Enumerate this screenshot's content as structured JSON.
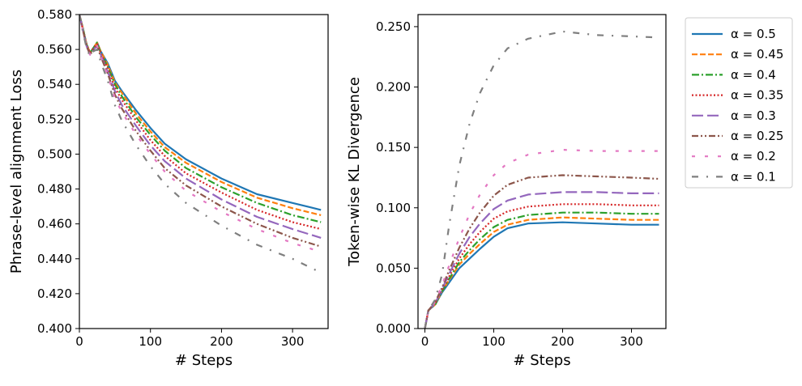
{
  "chart_data": [
    {
      "type": "line",
      "title": "",
      "xlabel": "# Steps",
      "ylabel": "Phrase-level alignment Loss",
      "xlim": [
        0,
        350
      ],
      "ylim": [
        0.4,
        0.58
      ],
      "grid": false,
      "xticks": [
        "0",
        "100",
        "200",
        "300"
      ],
      "yticks": [
        "0.400",
        "0.420",
        "0.440",
        "0.460",
        "0.480",
        "0.500",
        "0.520",
        "0.540",
        "0.560",
        "0.580"
      ],
      "x": [
        0,
        5,
        10,
        15,
        20,
        25,
        30,
        40,
        50,
        60,
        80,
        100,
        120,
        150,
        200,
        250,
        300,
        340
      ],
      "series": [
        {
          "name": "α = 0.5",
          "values": [
            0.58,
            0.572,
            0.563,
            0.558,
            0.561,
            0.564,
            0.559,
            0.552,
            0.542,
            0.536,
            0.525,
            0.515,
            0.506,
            0.497,
            0.486,
            0.477,
            0.472,
            0.468
          ]
        },
        {
          "name": "α = 0.45",
          "values": [
            0.58,
            0.572,
            0.563,
            0.558,
            0.561,
            0.564,
            0.559,
            0.551,
            0.541,
            0.535,
            0.523,
            0.513,
            0.504,
            0.495,
            0.484,
            0.475,
            0.469,
            0.465
          ]
        },
        {
          "name": "α = 0.4",
          "values": [
            0.58,
            0.572,
            0.563,
            0.558,
            0.561,
            0.564,
            0.558,
            0.55,
            0.54,
            0.533,
            0.521,
            0.511,
            0.502,
            0.492,
            0.481,
            0.472,
            0.465,
            0.461
          ]
        },
        {
          "name": "α = 0.35",
          "values": [
            0.58,
            0.571,
            0.563,
            0.558,
            0.561,
            0.563,
            0.558,
            0.549,
            0.538,
            0.531,
            0.519,
            0.508,
            0.499,
            0.489,
            0.478,
            0.468,
            0.461,
            0.457
          ]
        },
        {
          "name": "α = 0.3",
          "values": [
            0.58,
            0.571,
            0.562,
            0.557,
            0.56,
            0.562,
            0.557,
            0.547,
            0.536,
            0.528,
            0.516,
            0.505,
            0.496,
            0.486,
            0.474,
            0.464,
            0.457,
            0.452
          ]
        },
        {
          "name": "α = 0.25",
          "values": [
            0.58,
            0.571,
            0.562,
            0.557,
            0.56,
            0.562,
            0.556,
            0.546,
            0.534,
            0.526,
            0.513,
            0.502,
            0.492,
            0.482,
            0.47,
            0.46,
            0.452,
            0.447
          ]
        },
        {
          "name": "α = 0.2",
          "values": [
            0.58,
            0.571,
            0.562,
            0.557,
            0.56,
            0.562,
            0.556,
            0.545,
            0.532,
            0.524,
            0.511,
            0.5,
            0.49,
            0.479,
            0.467,
            0.457,
            0.449,
            0.444
          ]
        },
        {
          "name": "α = 0.1",
          "values": [
            0.58,
            0.57,
            0.561,
            0.556,
            0.559,
            0.56,
            0.553,
            0.542,
            0.528,
            0.519,
            0.505,
            0.493,
            0.483,
            0.472,
            0.459,
            0.448,
            0.44,
            0.432
          ]
        }
      ]
    },
    {
      "type": "line",
      "title": "",
      "xlabel": "# Steps",
      "ylabel": "Token-wise KL Divergence",
      "xlim": [
        -10,
        350
      ],
      "ylim": [
        0,
        0.26
      ],
      "grid": false,
      "xticks": [
        "0",
        "100",
        "200",
        "300"
      ],
      "yticks": [
        "0.000",
        "0.050",
        "0.100",
        "0.150",
        "0.200",
        "0.250"
      ],
      "x": [
        0,
        5,
        15,
        25,
        35,
        50,
        65,
        80,
        100,
        120,
        150,
        200,
        250,
        300,
        340
      ],
      "series": [
        {
          "name": "α = 0.5",
          "values": [
            0.0,
            0.015,
            0.02,
            0.03,
            0.038,
            0.05,
            0.058,
            0.066,
            0.076,
            0.083,
            0.087,
            0.088,
            0.087,
            0.086,
            0.086
          ]
        },
        {
          "name": "α = 0.45",
          "values": [
            0.0,
            0.015,
            0.02,
            0.031,
            0.04,
            0.053,
            0.062,
            0.07,
            0.08,
            0.086,
            0.09,
            0.092,
            0.091,
            0.09,
            0.09
          ]
        },
        {
          "name": "α = 0.4",
          "values": [
            0.0,
            0.015,
            0.02,
            0.031,
            0.041,
            0.055,
            0.065,
            0.074,
            0.084,
            0.09,
            0.094,
            0.096,
            0.096,
            0.095,
            0.095
          ]
        },
        {
          "name": "α = 0.35",
          "values": [
            0.0,
            0.015,
            0.021,
            0.032,
            0.043,
            0.058,
            0.07,
            0.08,
            0.091,
            0.097,
            0.101,
            0.103,
            0.103,
            0.102,
            0.102
          ]
        },
        {
          "name": "α = 0.3",
          "values": [
            0.0,
            0.015,
            0.021,
            0.033,
            0.045,
            0.062,
            0.076,
            0.087,
            0.099,
            0.106,
            0.111,
            0.113,
            0.113,
            0.112,
            0.112
          ]
        },
        {
          "name": "α = 0.25",
          "values": [
            0.0,
            0.015,
            0.022,
            0.034,
            0.048,
            0.067,
            0.083,
            0.096,
            0.11,
            0.119,
            0.125,
            0.127,
            0.126,
            0.125,
            0.124
          ]
        },
        {
          "name": "α = 0.2",
          "values": [
            0.0,
            0.015,
            0.022,
            0.036,
            0.052,
            0.075,
            0.095,
            0.111,
            0.127,
            0.137,
            0.144,
            0.148,
            0.147,
            0.147,
            0.147
          ]
        },
        {
          "name": "α = 0.1",
          "values": [
            0.0,
            0.015,
            0.024,
            0.045,
            0.085,
            0.135,
            0.17,
            0.195,
            0.218,
            0.232,
            0.24,
            0.246,
            0.243,
            0.242,
            0.241
          ]
        }
      ]
    }
  ],
  "legend": {
    "placement": "outside-right",
    "entries": [
      {
        "label": "α = 0.5",
        "color": "#1f77b4",
        "style": "solid"
      },
      {
        "label": "α = 0.45",
        "color": "#ff7f0e",
        "style": "dashed"
      },
      {
        "label": "α = 0.4",
        "color": "#2ca02c",
        "style": "dashdot"
      },
      {
        "label": "α = 0.35",
        "color": "#d62728",
        "style": "dotted"
      },
      {
        "label": "α = 0.3",
        "color": "#9467bd",
        "style": "long-dash"
      },
      {
        "label": "α = 0.25",
        "color": "#8c564b",
        "style": "dash-dot-dot"
      },
      {
        "label": "α = 0.2",
        "color": "#e377c2",
        "style": "sparse-dash"
      },
      {
        "label": "α = 0.1",
        "color": "#7f7f7f",
        "style": "sparse-dashdot"
      }
    ]
  }
}
